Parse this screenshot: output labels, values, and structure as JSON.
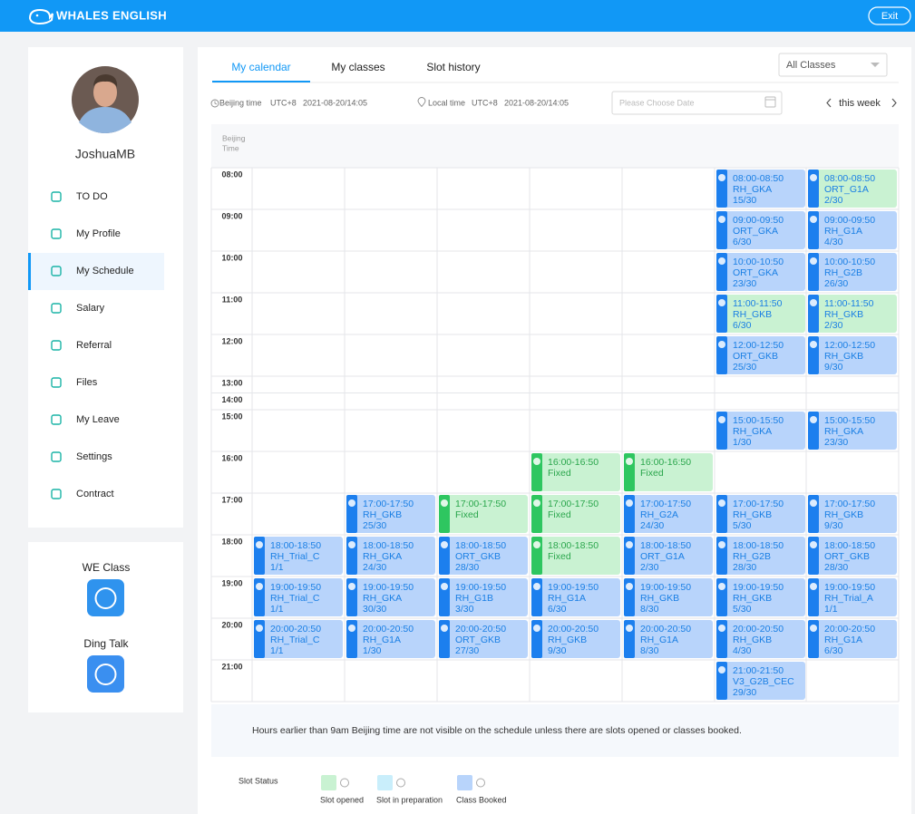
{
  "header": {
    "brand": "WHALES ENGLISH",
    "exit": "Exit"
  },
  "sidebar": {
    "user_name": "JoshuaMB",
    "active_menu": 2,
    "menu": [
      "TO DO",
      "My Profile",
      "My Schedule",
      "Salary",
      "Referral",
      "Files",
      "My Leave",
      "Settings",
      "Contract"
    ],
    "apps": [
      "WE Class",
      "Ding Talk"
    ]
  },
  "tabs": {
    "items": [
      "My calendar",
      "My classes",
      "Slot history"
    ],
    "active": 0
  },
  "filter": "All Classes",
  "time_info": {
    "beijing_label": "Beijing time",
    "beijing_tz": "UTC+8",
    "beijing_time": "2021-08-20/14:05",
    "local_label": "Local time",
    "local_tz": "UTC+8",
    "local_time": "2021-08-20/14:05"
  },
  "date_placeholder": "Please Choose Date",
  "week_label": "this week",
  "calendar": {
    "header_label": [
      "Beijing",
      "Time"
    ],
    "rows": [
      {
        "hour": "08:00",
        "cells": [
          null,
          null,
          null,
          null,
          null,
          {
            "time": "08:00-08:50",
            "name": "RH_GKA",
            "count": "15/30",
            "status": "booked"
          },
          {
            "time": "08:00-08:50",
            "name": "ORT_G1A",
            "count": "2/30",
            "status": "mixed"
          }
        ]
      },
      {
        "hour": "09:00",
        "cells": [
          null,
          null,
          null,
          null,
          null,
          {
            "time": "09:00-09:50",
            "name": "ORT_GKA",
            "count": "6/30",
            "status": "booked"
          },
          {
            "time": "09:00-09:50",
            "name": "RH_G1A",
            "count": "4/30",
            "status": "booked"
          }
        ]
      },
      {
        "hour": "10:00",
        "cells": [
          null,
          null,
          null,
          null,
          null,
          {
            "time": "10:00-10:50",
            "name": "ORT_GKA",
            "count": "23/30",
            "status": "booked"
          },
          {
            "time": "10:00-10:50",
            "name": "RH_G2B",
            "count": "26/30",
            "status": "booked"
          }
        ]
      },
      {
        "hour": "11:00",
        "cells": [
          null,
          null,
          null,
          null,
          null,
          {
            "time": "11:00-11:50",
            "name": "RH_GKB",
            "count": "6/30",
            "status": "mixed"
          },
          {
            "time": "11:00-11:50",
            "name": "RH_GKB",
            "count": "2/30",
            "status": "mixed"
          }
        ]
      },
      {
        "hour": "12:00",
        "cells": [
          null,
          null,
          null,
          null,
          null,
          {
            "time": "12:00-12:50",
            "name": "ORT_GKB",
            "count": "25/30",
            "status": "booked"
          },
          {
            "time": "12:00-12:50",
            "name": "RH_GKB",
            "count": "9/30",
            "status": "booked"
          }
        ]
      },
      {
        "hour": "13:00",
        "cells": [
          null,
          null,
          null,
          null,
          null,
          null,
          null
        ]
      },
      {
        "hour": "14:00",
        "cells": [
          null,
          null,
          null,
          null,
          null,
          null,
          null
        ]
      },
      {
        "hour": "15:00",
        "cells": [
          null,
          null,
          null,
          null,
          null,
          {
            "time": "15:00-15:50",
            "name": "RH_GKA",
            "count": "1/30",
            "status": "booked"
          },
          {
            "time": "15:00-15:50",
            "name": "RH_GKA",
            "count": "23/30",
            "status": "booked"
          }
        ]
      },
      {
        "hour": "16:00",
        "cells": [
          null,
          null,
          null,
          {
            "time": "16:00-16:50",
            "name": "Fixed",
            "status": "opened"
          },
          {
            "time": "16:00-16:50",
            "name": "Fixed",
            "status": "opened"
          },
          null,
          null
        ]
      },
      {
        "hour": "17:00",
        "cells": [
          null,
          {
            "time": "17:00-17:50",
            "name": "RH_GKB",
            "count": "25/30",
            "status": "booked"
          },
          {
            "time": "17:00-17:50",
            "name": "Fixed",
            "status": "opened"
          },
          {
            "time": "17:00-17:50",
            "name": "Fixed",
            "status": "opened"
          },
          {
            "time": "17:00-17:50",
            "name": "RH_G2A",
            "count": "24/30",
            "status": "booked"
          },
          {
            "time": "17:00-17:50",
            "name": "RH_GKB",
            "count": "5/30",
            "status": "booked"
          },
          {
            "time": "17:00-17:50",
            "name": "RH_GKB",
            "count": "9/30",
            "status": "booked"
          }
        ]
      },
      {
        "hour": "18:00",
        "cells": [
          {
            "time": "18:00-18:50",
            "name": "RH_Trial_C",
            "count": "1/1",
            "status": "booked"
          },
          {
            "time": "18:00-18:50",
            "name": "RH_GKA",
            "count": "24/30",
            "status": "booked"
          },
          {
            "time": "18:00-18:50",
            "name": "ORT_GKB",
            "count": "28/30",
            "status": "booked"
          },
          {
            "time": "18:00-18:50",
            "name": "Fixed",
            "status": "opened"
          },
          {
            "time": "18:00-18:50",
            "name": "ORT_G1A",
            "count": "2/30",
            "status": "booked"
          },
          {
            "time": "18:00-18:50",
            "name": "RH_G2B",
            "count": "28/30",
            "status": "booked"
          },
          {
            "time": "18:00-18:50",
            "name": "ORT_GKB",
            "count": "28/30",
            "status": "booked"
          }
        ]
      },
      {
        "hour": "19:00",
        "cells": [
          {
            "time": "19:00-19:50",
            "name": "RH_Trial_C",
            "count": "1/1",
            "status": "booked"
          },
          {
            "time": "19:00-19:50",
            "name": "RH_GKA",
            "count": "30/30",
            "status": "booked"
          },
          {
            "time": "19:00-19:50",
            "name": "RH_G1B",
            "count": "3/30",
            "status": "booked"
          },
          {
            "time": "19:00-19:50",
            "name": "RH_G1A",
            "count": "6/30",
            "status": "booked"
          },
          {
            "time": "19:00-19:50",
            "name": "RH_GKB",
            "count": "8/30",
            "status": "booked"
          },
          {
            "time": "19:00-19:50",
            "name": "RH_GKB",
            "count": "5/30",
            "status": "booked"
          },
          {
            "time": "19:00-19:50",
            "name": "RH_Trial_A",
            "count": "1/1",
            "status": "booked"
          }
        ]
      },
      {
        "hour": "20:00",
        "cells": [
          {
            "time": "20:00-20:50",
            "name": "RH_Trial_C",
            "count": "1/1",
            "status": "booked"
          },
          {
            "time": "20:00-20:50",
            "name": "RH_G1A",
            "count": "1/30",
            "status": "booked"
          },
          {
            "time": "20:00-20:50",
            "name": "ORT_GKB",
            "count": "27/30",
            "status": "booked"
          },
          {
            "time": "20:00-20:50",
            "name": "RH_GKB",
            "count": "9/30",
            "status": "booked"
          },
          {
            "time": "20:00-20:50",
            "name": "RH_G1A",
            "count": "8/30",
            "status": "booked"
          },
          {
            "time": "20:00-20:50",
            "name": "RH_GKB",
            "count": "4/30",
            "status": "booked"
          },
          {
            "time": "20:00-20:50",
            "name": "RH_G1A",
            "count": "6/30",
            "status": "booked"
          }
        ]
      },
      {
        "hour": "21:00",
        "cells": [
          null,
          null,
          null,
          null,
          null,
          {
            "time": "21:00-21:50",
            "name": "V3_G2B_CEC",
            "count": "29/30",
            "status": "booked"
          },
          null
        ]
      }
    ]
  },
  "notice": "Hours earlier than 9am Beijing time are not visible on the schedule unless there are slots opened or classes booked.",
  "legend": {
    "title": "Slot Status",
    "items": [
      {
        "label": "Slot opened",
        "color": "#c9f2d2"
      },
      {
        "label": "Slot in preparation",
        "color": "#c9eefb"
      },
      {
        "label": "Class Booked",
        "color": "#b8d4fb"
      }
    ]
  }
}
